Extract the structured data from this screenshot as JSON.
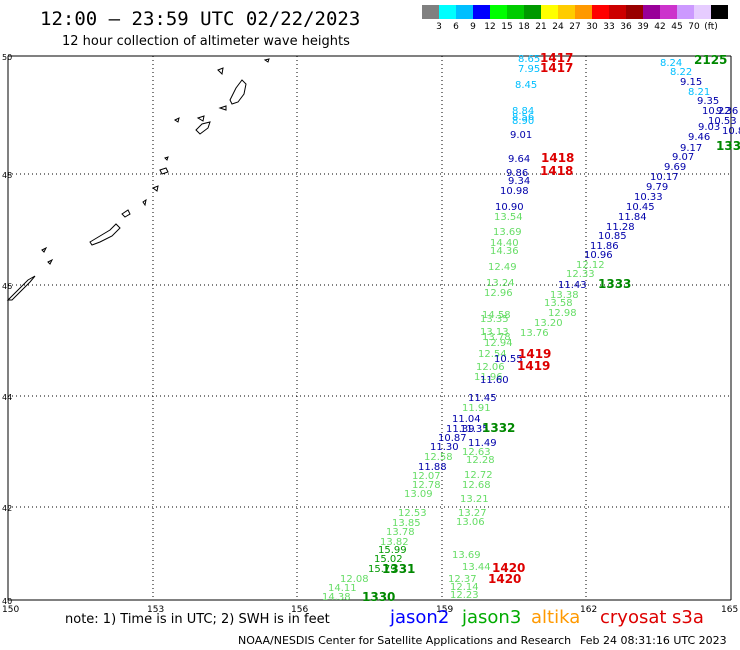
{
  "title": "12:00 – 23:59 UTC 02/22/2023",
  "subtitle": "12 hour collection of altimeter wave heights",
  "scale": {
    "colors": [
      "#808080",
      "#00ffff",
      "#00bfff",
      "#0000ff",
      "#00ff00",
      "#00cc00",
      "#009900",
      "#ffff00",
      "#ffcc00",
      "#ff9900",
      "#ff0000",
      "#cc0000",
      "#990000",
      "#990099",
      "#cc33cc",
      "#cc99ff",
      "#e6ccff",
      "#000000"
    ],
    "labels": [
      "3",
      "6",
      "9",
      "12",
      "15",
      "18",
      "21",
      "24",
      "27",
      "30",
      "33",
      "36",
      "39",
      "42",
      "45",
      "70",
      "(ft)"
    ]
  },
  "axes": {
    "lon_labels": [
      "150",
      "153",
      "156",
      "159",
      "162",
      "165"
    ],
    "lat_labels": [
      "50",
      "48",
      "46",
      "44",
      "42",
      "40"
    ]
  },
  "readings": [
    {
      "t": "8.65",
      "c": "#00bfff"
    },
    {
      "t": "7.95",
      "c": "#00bfff"
    },
    {
      "t": "8.45",
      "c": "#00bfff"
    },
    {
      "t": "8.84",
      "c": "#00bfff"
    },
    {
      "t": "8.56",
      "c": "#00bfff"
    },
    {
      "t": "8.90",
      "c": "#00bfff"
    },
    {
      "t": "9.01",
      "c": "#0000aa"
    },
    {
      "t": "9.64",
      "c": "#0000aa"
    },
    {
      "t": "9.86",
      "c": "#0000aa"
    },
    {
      "t": "9.34",
      "c": "#0000aa"
    },
    {
      "t": "10.98",
      "c": "#0000aa"
    },
    {
      "t": "10.90",
      "c": "#0000aa"
    },
    {
      "t": "13.54",
      "c": "#66dd66"
    },
    {
      "t": "13.69",
      "c": "#66dd66"
    },
    {
      "t": "14.40",
      "c": "#66dd66"
    },
    {
      "t": "14.36",
      "c": "#66dd66"
    },
    {
      "t": "12.49",
      "c": "#66dd66"
    },
    {
      "t": "13.24",
      "c": "#66dd66"
    },
    {
      "t": "12.96",
      "c": "#66dd66"
    },
    {
      "t": "14.58",
      "c": "#66dd66"
    },
    {
      "t": "13.35",
      "c": "#66dd66"
    },
    {
      "t": "13.13",
      "c": "#66dd66"
    },
    {
      "t": "13.78",
      "c": "#66dd66"
    },
    {
      "t": "12.94",
      "c": "#66dd66"
    },
    {
      "t": "12.54",
      "c": "#66dd66"
    },
    {
      "t": "12.06",
      "c": "#66dd66"
    },
    {
      "t": "11.96",
      "c": "#66dd66"
    },
    {
      "t": "11.60",
      "c": "#0000aa"
    },
    {
      "t": "10.55",
      "c": "#0000aa"
    },
    {
      "t": "11.45",
      "c": "#0000aa"
    },
    {
      "t": "11.91",
      "c": "#66dd66"
    },
    {
      "t": "11.04",
      "c": "#0000aa"
    },
    {
      "t": "11.39",
      "c": "#0000aa"
    },
    {
      "t": "11.35",
      "c": "#0000aa"
    },
    {
      "t": "10.87",
      "c": "#0000aa"
    },
    {
      "t": "11.49",
      "c": "#0000aa"
    },
    {
      "t": "11.30",
      "c": "#0000aa"
    },
    {
      "t": "12.63",
      "c": "#66dd66"
    },
    {
      "t": "12.58",
      "c": "#66dd66"
    },
    {
      "t": "12.28",
      "c": "#66dd66"
    },
    {
      "t": "11.88",
      "c": "#0000aa"
    },
    {
      "t": "12.72",
      "c": "#66dd66"
    },
    {
      "t": "12.07",
      "c": "#66dd66"
    },
    {
      "t": "12.78",
      "c": "#66dd66"
    },
    {
      "t": "12.68",
      "c": "#66dd66"
    },
    {
      "t": "13.09",
      "c": "#66dd66"
    },
    {
      "t": "13.21",
      "c": "#66dd66"
    },
    {
      "t": "12.53",
      "c": "#66dd66"
    },
    {
      "t": "13.27",
      "c": "#66dd66"
    },
    {
      "t": "13.85",
      "c": "#66dd66"
    },
    {
      "t": "13.06",
      "c": "#66dd66"
    },
    {
      "t": "13.78",
      "c": "#66dd66"
    },
    {
      "t": "13.82",
      "c": "#66dd66"
    },
    {
      "t": "15.99",
      "c": "#009900"
    },
    {
      "t": "15.02",
      "c": "#009900"
    },
    {
      "t": "13.69",
      "c": "#66dd66"
    },
    {
      "t": "15.79",
      "c": "#009900"
    },
    {
      "t": "13.44",
      "c": "#66dd66"
    },
    {
      "t": "12.08",
      "c": "#66dd66"
    },
    {
      "t": "12.37",
      "c": "#66dd66"
    },
    {
      "t": "14.11",
      "c": "#66dd66"
    },
    {
      "t": "12.14",
      "c": "#66dd66"
    },
    {
      "t": "14.38",
      "c": "#66dd66"
    },
    {
      "t": "12.23",
      "c": "#66dd66"
    },
    {
      "t": "8.24",
      "c": "#00bfff"
    },
    {
      "t": "8.22",
      "c": "#00bfff"
    },
    {
      "t": "9.15",
      "c": "#0000aa"
    },
    {
      "t": "8.21",
      "c": "#00bfff"
    },
    {
      "t": "9.35",
      "c": "#0000aa"
    },
    {
      "t": "10.22",
      "c": "#0000aa"
    },
    {
      "t": "9.36",
      "c": "#0000aa"
    },
    {
      "t": "10.53",
      "c": "#0000aa"
    },
    {
      "t": "9.03",
      "c": "#0000aa"
    },
    {
      "t": "10.8",
      "c": "#0000aa"
    },
    {
      "t": "9.46",
      "c": "#0000aa"
    },
    {
      "t": "9.17",
      "c": "#0000aa"
    },
    {
      "t": "9.07",
      "c": "#0000aa"
    },
    {
      "t": "9.69",
      "c": "#0000aa"
    },
    {
      "t": "10.17",
      "c": "#0000aa"
    },
    {
      "t": "9.79",
      "c": "#0000aa"
    },
    {
      "t": "10.33",
      "c": "#0000aa"
    },
    {
      "t": "10.45",
      "c": "#0000aa"
    },
    {
      "t": "11.84",
      "c": "#0000aa"
    },
    {
      "t": "11.28",
      "c": "#0000aa"
    },
    {
      "t": "10.85",
      "c": "#0000aa"
    },
    {
      "t": "11.86",
      "c": "#0000aa"
    },
    {
      "t": "10.96",
      "c": "#0000aa"
    },
    {
      "t": "12.12",
      "c": "#66dd66"
    },
    {
      "t": "12.33",
      "c": "#66dd66"
    },
    {
      "t": "11.43",
      "c": "#0000aa"
    },
    {
      "t": "13.38",
      "c": "#66dd66"
    },
    {
      "t": "13.58",
      "c": "#66dd66"
    },
    {
      "t": "12.98",
      "c": "#66dd66"
    },
    {
      "t": "13.20",
      "c": "#66dd66"
    },
    {
      "t": "13.76",
      "c": "#66dd66"
    }
  ],
  "times": [
    {
      "t": "1417",
      "c": "#dd0000"
    },
    {
      "t": "1417",
      "c": "#dd0000"
    },
    {
      "t": "1418",
      "c": "#dd0000"
    },
    {
      "t": "1418",
      "c": "#dd0000"
    },
    {
      "t": "1419",
      "c": "#dd0000"
    },
    {
      "t": "1419",
      "c": "#dd0000"
    },
    {
      "t": "1420",
      "c": "#dd0000"
    },
    {
      "t": "1420",
      "c": "#dd0000"
    },
    {
      "t": "2125",
      "c": "#008800"
    },
    {
      "t": "133",
      "c": "#008800"
    },
    {
      "t": "1333",
      "c": "#008800"
    },
    {
      "t": "1332",
      "c": "#008800"
    },
    {
      "t": "1331",
      "c": "#008800"
    },
    {
      "t": "1330",
      "c": "#008800"
    }
  ],
  "note": "note: 1) Time is in UTC; 2) SWH is in feet",
  "satellites": [
    {
      "name": "jason2",
      "color": "#0000ff"
    },
    {
      "name": "jason3",
      "color": "#00aa00"
    },
    {
      "name": "altika",
      "color": "#ff9900"
    },
    {
      "name": "cryosat",
      "color": "#dd0000"
    },
    {
      "name": "s3a",
      "color": "#dd0000"
    }
  ],
  "credit": "NOAA/NESDIS Center for Satellite Applications and Research",
  "stamp": "Feb 24 08:31:16 UTC 2023"
}
